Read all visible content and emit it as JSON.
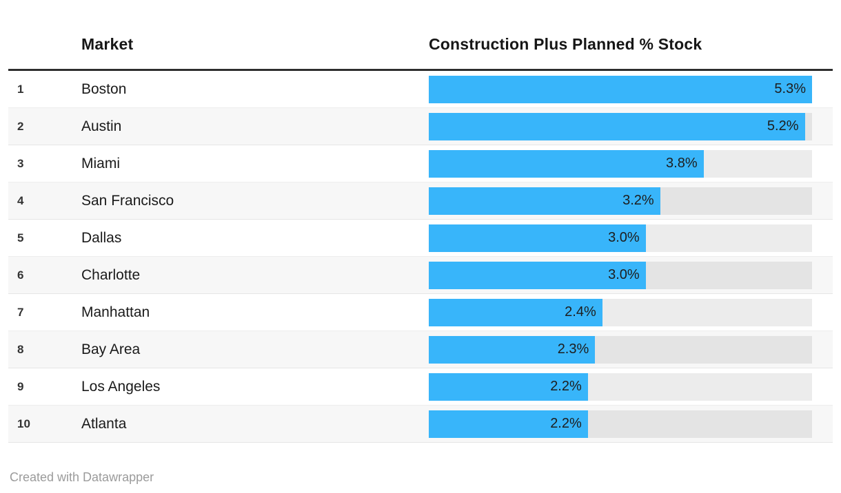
{
  "header": {
    "market_label": "Market",
    "value_label": "Construction Plus Planned % Stock"
  },
  "footer": {
    "credit": "Created with Datawrapper"
  },
  "colors": {
    "bar": "#38b5fa",
    "track": "rgba(0,0,0,0.075)",
    "alt_row": "#f7f7f7",
    "header_border": "#2e2e2e",
    "text": "#1a1a1a",
    "credit_text": "#9b9b9b"
  },
  "chart_data": {
    "type": "bar",
    "title": "",
    "columns": [
      "Market",
      "Construction Plus Planned % Stock"
    ],
    "unit": "%",
    "max_value": 5.3,
    "xlim": [
      0,
      5.3
    ],
    "legend": "none",
    "grid": "off",
    "bar_labels": "inside-right",
    "rows": [
      {
        "rank": "1",
        "market": "Boston",
        "value": 5.3,
        "label": "5.3%"
      },
      {
        "rank": "2",
        "market": "Austin",
        "value": 5.2,
        "label": "5.2%"
      },
      {
        "rank": "3",
        "market": "Miami",
        "value": 3.8,
        "label": "3.8%"
      },
      {
        "rank": "4",
        "market": "San Francisco",
        "value": 3.2,
        "label": "3.2%"
      },
      {
        "rank": "5",
        "market": "Dallas",
        "value": 3.0,
        "label": "3.0%"
      },
      {
        "rank": "6",
        "market": "Charlotte",
        "value": 3.0,
        "label": "3.0%"
      },
      {
        "rank": "7",
        "market": "Manhattan",
        "value": 2.4,
        "label": "2.4%"
      },
      {
        "rank": "8",
        "market": "Bay Area",
        "value": 2.3,
        "label": "2.3%"
      },
      {
        "rank": "9",
        "market": "Los Angeles",
        "value": 2.2,
        "label": "2.2%"
      },
      {
        "rank": "10",
        "market": "Atlanta",
        "value": 2.2,
        "label": "2.2%"
      }
    ]
  }
}
